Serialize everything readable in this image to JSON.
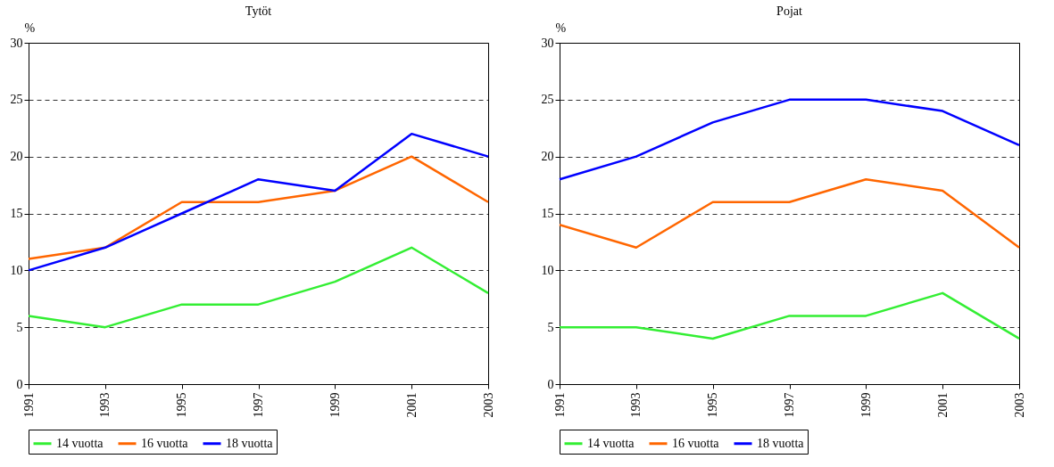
{
  "chart_data": [
    {
      "type": "line",
      "title": "Tytöt",
      "ylabel": "%",
      "categories": [
        "1991",
        "1993",
        "1995",
        "1997",
        "1999",
        "2001",
        "2003"
      ],
      "ylim": [
        0,
        30
      ],
      "yticks": [
        0,
        5,
        10,
        15,
        20,
        25,
        30
      ],
      "grid": "y",
      "legend": "bottom",
      "line_style": "solid",
      "series": [
        {
          "name": "14 vuotta",
          "color": "#33ee33",
          "values": [
            6,
            5,
            7,
            7,
            9,
            12,
            8
          ]
        },
        {
          "name": "16 vuotta",
          "color": "#ff6600",
          "values": [
            11,
            12,
            16,
            16,
            17,
            20,
            16
          ]
        },
        {
          "name": "18 vuotta",
          "color": "#0000ff",
          "values": [
            10,
            12,
            15,
            18,
            17,
            22,
            20
          ]
        }
      ]
    },
    {
      "type": "line",
      "title": "Pojat",
      "ylabel": "%",
      "categories": [
        "1991",
        "1993",
        "1995",
        "1997",
        "1999",
        "2001",
        "2003"
      ],
      "ylim": [
        0,
        30
      ],
      "yticks": [
        0,
        5,
        10,
        15,
        20,
        25,
        30
      ],
      "grid": "y",
      "legend": "bottom",
      "line_style": "solid",
      "series": [
        {
          "name": "14 vuotta",
          "color": "#33ee33",
          "values": [
            5,
            5,
            4,
            6,
            6,
            8,
            4
          ]
        },
        {
          "name": "16 vuotta",
          "color": "#ff6600",
          "values": [
            14,
            12,
            16,
            16,
            18,
            17,
            12
          ]
        },
        {
          "name": "18 vuotta",
          "color": "#0000ff",
          "values": [
            18,
            20,
            23,
            25,
            25,
            24,
            21
          ]
        }
      ]
    }
  ]
}
